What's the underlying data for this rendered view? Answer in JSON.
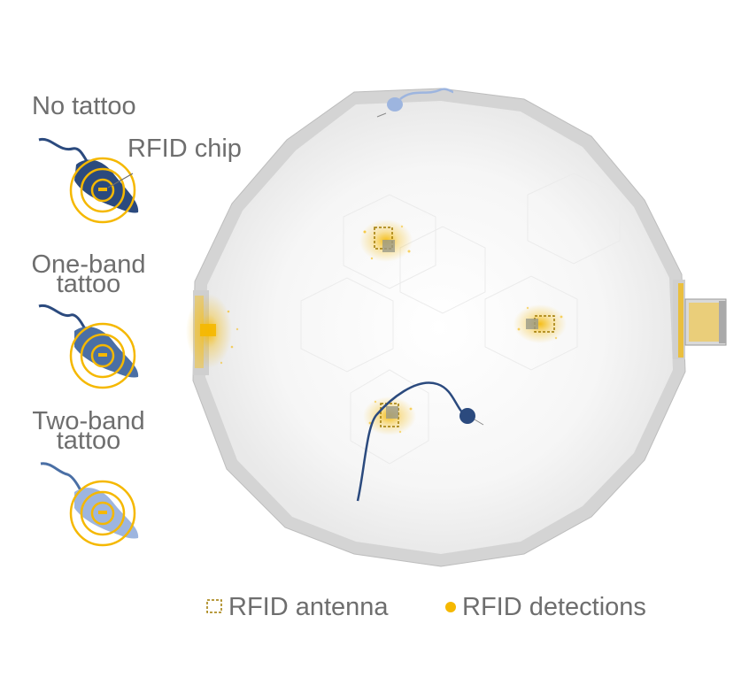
{
  "labels": {
    "no_tattoo": "No tattoo",
    "rfid_chip": "RFID chip",
    "one_band_line1": "One-band",
    "one_band_line2": "tattoo",
    "two_band_line1": "Two-band",
    "two_band_line2": "tattoo"
  },
  "legend": {
    "antenna": "RFID antenna",
    "detections": "RFID detections"
  },
  "colors": {
    "rfid_yellow": "#f5b800",
    "mouse_dark": "#2b4a7e",
    "mouse_mid": "#4a6fa5",
    "mouse_light": "#9db5df",
    "arena_wall": "#c9c9c9",
    "label_gray": "#6e6e6e"
  }
}
